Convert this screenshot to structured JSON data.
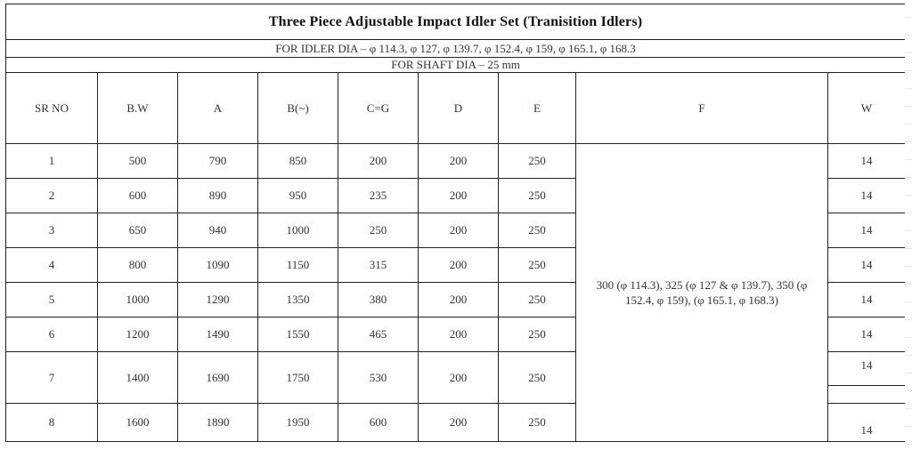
{
  "title": "Three Piece Adjustable Impact Idler Set (Tranisition Idlers)",
  "idler_dia": "FOR IDLER DIA – φ 114.3, φ 127, φ 139.7, φ 152.4, φ 159, φ 165.1, φ 168.3",
  "shaft_dia": "FOR SHAFT DIA – 25 mm",
  "headers": [
    "SR NO",
    "B.W",
    "A",
    "B(~)",
    "C=G",
    "D",
    "E",
    "F",
    "W"
  ],
  "rows": [
    [
      "1",
      "500",
      "790",
      "850",
      "200",
      "200",
      "250"
    ],
    [
      "2",
      "600",
      "890",
      "950",
      "235",
      "200",
      "250"
    ],
    [
      "3",
      "650",
      "940",
      "1000",
      "250",
      "200",
      "250"
    ],
    [
      "4",
      "800",
      "1090",
      "1150",
      "315",
      "200",
      "250"
    ],
    [
      "5",
      "1000",
      "1290",
      "1350",
      "380",
      "200",
      "250"
    ],
    [
      "6",
      "1200",
      "1490",
      "1550",
      "465",
      "200",
      "250"
    ],
    [
      "7",
      "1400",
      "1690",
      "1750",
      "530",
      "200",
      "250"
    ],
    [
      "8",
      "1600",
      "1890",
      "1950",
      "600",
      "200",
      "250"
    ]
  ],
  "f_value": "300 (φ 114.3), 325 (φ 127 & φ 139.7), 350 (φ 152.4, φ 159),  (φ 165.1, φ 168.3)",
  "w_values": [
    "14",
    "14",
    "14",
    "14",
    "14",
    "14",
    "14",
    "14"
  ]
}
